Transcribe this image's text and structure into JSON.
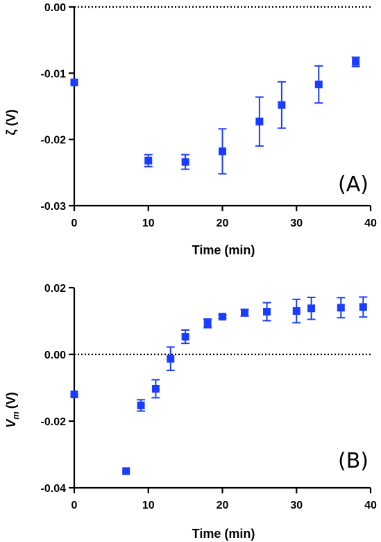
{
  "chart_data": [
    {
      "type": "scatter",
      "panel_label": "(A)",
      "xlabel": "Time (min)",
      "ylabel": "ζ (V)",
      "xlim": [
        0,
        40
      ],
      "ylim": [
        -0.03,
        0.0
      ],
      "xticks": [
        0,
        10,
        20,
        30,
        40
      ],
      "yticks": [
        -0.03,
        -0.02,
        -0.01,
        0.0
      ],
      "xtick_labels": [
        "0",
        "10",
        "20",
        "30",
        "40"
      ],
      "ytick_labels": [
        "-0.03",
        "-0.02",
        "-0.01",
        "0.00"
      ],
      "reference_line": {
        "y": 0.0,
        "style": "dotted"
      },
      "color": "#1a3cff",
      "series": [
        {
          "x": [
            0,
            10,
            15,
            20,
            25,
            28,
            33,
            38
          ],
          "y": [
            -0.0114,
            -0.0232,
            -0.0234,
            -0.0218,
            -0.0173,
            -0.0148,
            -0.0117,
            -0.0083
          ],
          "err": [
            0.0,
            0.0009,
            0.0011,
            0.0034,
            0.0037,
            0.0035,
            0.0028,
            0.0007
          ]
        }
      ]
    },
    {
      "type": "scatter",
      "panel_label": "(B)",
      "xlabel": "Time (min)",
      "ylabel": "V",
      "ylabel_sub": "m",
      "ylabel_unit": "(V)",
      "xlim": [
        0,
        40
      ],
      "ylim": [
        -0.04,
        0.02
      ],
      "xticks": [
        0,
        10,
        20,
        30,
        40
      ],
      "yticks": [
        -0.04,
        -0.02,
        0.0,
        0.02
      ],
      "xtick_labels": [
        "0",
        "10",
        "20",
        "30",
        "40"
      ],
      "ytick_labels": [
        "-0.04",
        "-0.02",
        "0.00",
        "0.02"
      ],
      "reference_line": {
        "y": 0.0,
        "style": "dotted"
      },
      "color": "#1a3cff",
      "series": [
        {
          "x": [
            0,
            7,
            9,
            11,
            13,
            15,
            18,
            20,
            23,
            26,
            30,
            32,
            36,
            39
          ],
          "y": [
            -0.012,
            -0.035,
            -0.0153,
            -0.0103,
            -0.0013,
            0.0053,
            0.0093,
            0.0113,
            0.0125,
            0.0128,
            0.013,
            0.0138,
            0.014,
            0.0142
          ],
          "err": [
            0.0,
            0.0,
            0.0017,
            0.0027,
            0.0035,
            0.002,
            0.0013,
            0.0005,
            0.001,
            0.0027,
            0.0035,
            0.0033,
            0.003,
            0.003
          ]
        }
      ]
    }
  ]
}
